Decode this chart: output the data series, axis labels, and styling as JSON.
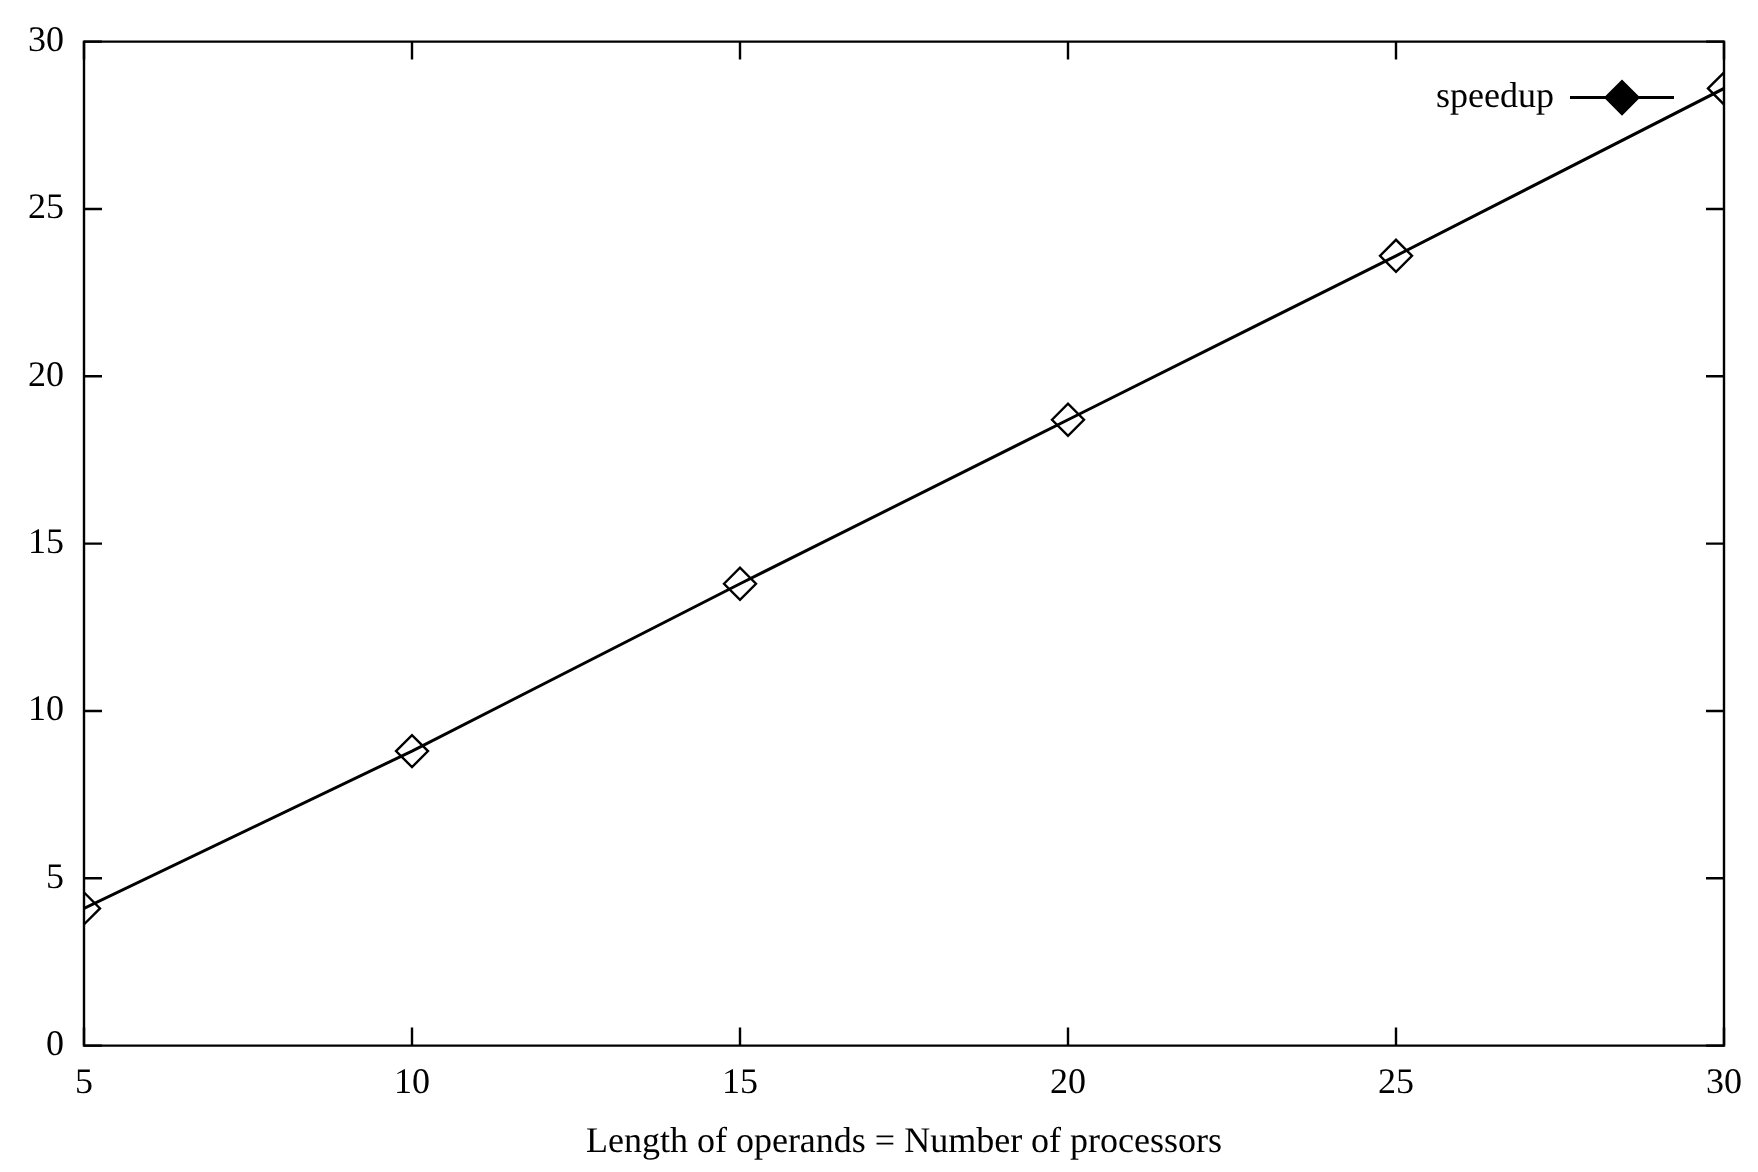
{
  "chart_data": {
    "type": "line",
    "xlabel": "Length of operands = Number of processors",
    "x": [
      5,
      10,
      15,
      20,
      25,
      30
    ],
    "series": [
      {
        "name": "speedup",
        "color": "#000000",
        "values": [
          4.1,
          8.8,
          13.8,
          18.7,
          23.6,
          28.6
        ]
      }
    ],
    "xlim": [
      5,
      30
    ],
    "xticks": [
      5,
      10,
      15,
      20,
      25,
      30
    ],
    "ylim": [
      0,
      30
    ],
    "yticks": [
      0,
      5,
      10,
      15,
      20,
      25,
      30
    ],
    "grid": false,
    "legend": "top right",
    "marker": "diamond",
    "line_style": "solid"
  }
}
